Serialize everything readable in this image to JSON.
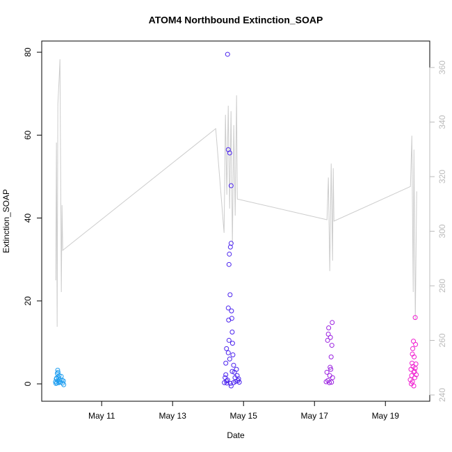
{
  "chart_data": {
    "type": "scatter",
    "title": "ATOM4 Northbound Extinction_SOAP",
    "x_label": "Date",
    "y_label": "Extinction_SOAP",
    "xlim": [
      9.31,
      20.25
    ],
    "xticks": [
      {
        "value": 11,
        "label": "May 11"
      },
      {
        "value": 13,
        "label": "May 13"
      },
      {
        "value": 15,
        "label": "May 15"
      },
      {
        "value": 17,
        "label": "May 17"
      },
      {
        "value": 19,
        "label": "May 19"
      }
    ],
    "ylim": [
      -4.19,
      82.7
    ],
    "yticks": [
      0,
      20,
      40,
      60,
      80
    ],
    "y2lim": [
      237.7,
      369.7
    ],
    "y2ticks": [
      240,
      260,
      280,
      300,
      320,
      340,
      360
    ],
    "y2tick_color": "#bbbbbb",
    "series": [
      {
        "color": "#1f9ef0",
        "x": [
          9.7,
          9.72,
          9.74,
          9.75,
          9.76,
          9.77,
          9.78,
          9.79,
          9.8,
          9.81,
          9.82,
          9.84,
          9.86,
          9.88,
          9.9,
          9.92,
          9.93,
          9.71,
          9.73,
          9.77
        ],
        "values": [
          0.5,
          1.2,
          0.2,
          2.5,
          3.3,
          0.8,
          1.5,
          0.3,
          2.0,
          0.6,
          1.0,
          0.4,
          1.8,
          0.9,
          0.2,
          0.7,
          -0.2,
          0.1,
          1.4,
          2.8
        ]
      },
      {
        "color": "#4a22ee",
        "x": [
          14.46,
          14.48,
          14.5,
          14.52,
          14.53,
          14.55,
          14.57,
          14.57,
          14.58,
          14.59,
          14.6,
          14.61,
          14.62,
          14.63,
          14.65,
          14.65,
          14.66,
          14.67,
          14.68,
          14.69,
          14.7,
          14.72,
          14.74,
          14.76,
          14.78,
          14.8,
          14.82,
          14.84,
          14.86,
          14.88,
          14.55,
          14.57,
          14.59,
          14.61,
          14.63,
          14.65,
          14.52,
          14.5,
          14.68,
          14.72
        ],
        "values": [
          0.3,
          1.5,
          5.0,
          8.5,
          0.2,
          79.5,
          56.5,
          18.3,
          15.4,
          28.8,
          31.3,
          55.7,
          21.5,
          33.0,
          47.8,
          33.9,
          17.6,
          15.8,
          12.5,
          9.8,
          7.0,
          4.5,
          2.8,
          1.5,
          0.6,
          3.5,
          2.0,
          0.8,
          1.2,
          0.4,
          0.9,
          7.5,
          10.5,
          6.0,
          0.1,
          -0.5,
          0.7,
          2.2,
          3.0,
          0.3
        ]
      },
      {
        "color": "#9a1fe0",
        "x": [
          17.33,
          17.35,
          17.37,
          17.39,
          17.4,
          17.42,
          17.44,
          17.45,
          17.47,
          17.49,
          17.5,
          17.51,
          17.38,
          17.43,
          17.46,
          17.48
        ],
        "values": [
          0.5,
          2.8,
          10.5,
          12.0,
          13.5,
          0.3,
          4.0,
          11.2,
          6.5,
          9.3,
          14.8,
          1.5,
          0.8,
          2.0,
          3.5,
          0.4
        ]
      },
      {
        "color": "#f01ed0",
        "x": [
          19.7,
          19.72,
          19.74,
          19.75,
          19.76,
          19.77,
          19.78,
          19.79,
          19.8,
          19.81,
          19.82,
          19.83,
          19.84,
          19.85,
          19.86,
          19.87,
          19.73,
          19.76,
          19.8,
          19.84
        ],
        "values": [
          1.0,
          3.5,
          2.0,
          5.0,
          0.5,
          8.5,
          4.2,
          10.3,
          2.8,
          6.5,
          3.0,
          1.5,
          16.0,
          9.5,
          4.8,
          2.2,
          0.0,
          7.2,
          -0.5,
          3.8
        ]
      },
      {
        "type": "line",
        "axis": "y2",
        "color": "#cccccc",
        "x": [
          9.706,
          9.725,
          9.745,
          9.765,
          9.804,
          9.824,
          9.863,
          9.882,
          9.902,
          14.216,
          14.451,
          14.49,
          14.529,
          14.569,
          14.608,
          14.647,
          14.686,
          14.725,
          14.765,
          14.804,
          14.824,
          17.353,
          17.392,
          17.431,
          17.471,
          17.51,
          17.529,
          17.549,
          19.706,
          19.745,
          19.784,
          19.804,
          19.843,
          19.882
        ],
        "values": [
          282,
          332.5,
          265,
          346.5,
          356.7,
          363,
          277.7,
          309.6,
          293,
          337.6,
          299.4,
          342.7,
          313.4,
          346,
          308.3,
          344,
          295.5,
          338.9,
          305.7,
          349.8,
          311.8,
          304.2,
          319.7,
          285.4,
          324.8,
          289.2,
          323.1,
          303.7,
          316.4,
          335,
          277.7,
          329.9,
          267.5,
          314.6
        ]
      }
    ]
  }
}
